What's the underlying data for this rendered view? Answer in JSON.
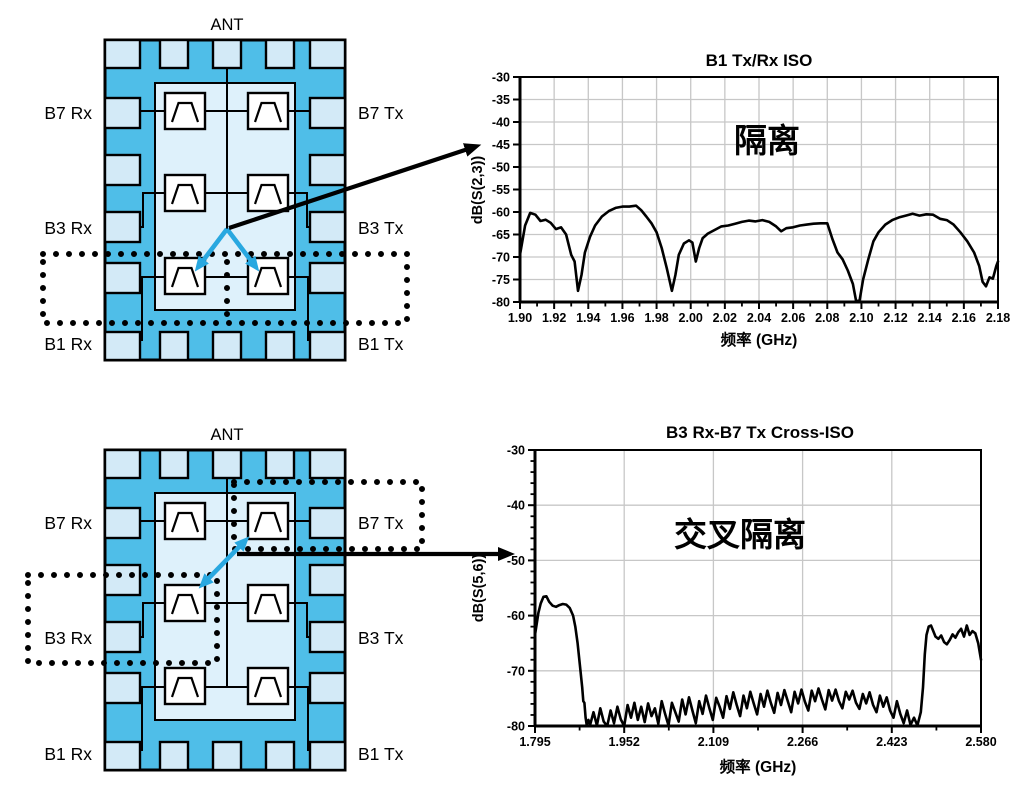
{
  "figure": {
    "background": "#ffffff"
  },
  "colors": {
    "chip_body": "#4FBEE8",
    "pad": "#D3EAF7",
    "inner_region": "#DEF1FB",
    "filter_box": "#FFFFFF",
    "accent_blue": "#29A8E0",
    "trace": "#000000",
    "grid": "#C7C7C7"
  },
  "diagram": {
    "top_chip": {
      "ant": "ANT",
      "pins_left": [
        "B7 Rx",
        "B3 Rx",
        "B1 Rx"
      ],
      "pins_right": [
        "B7 Tx",
        "B3 Tx",
        "B1 Tx"
      ]
    },
    "bottom_chip": {
      "ant": "ANT",
      "pins_left": [
        "B7 Rx",
        "B3 Rx",
        "B1 Rx"
      ],
      "pins_right": [
        "B7 Tx",
        "B3 Tx",
        "B1 Tx"
      ]
    }
  },
  "chart_data": [
    {
      "type": "line",
      "title": "B1 Tx/Rx ISO",
      "xlabel": "频率 (GHz)",
      "ylabel": "dB(S(2,3))",
      "xlim": [
        1.9,
        2.18
      ],
      "ylim": [
        -80,
        -30
      ],
      "grid": true,
      "legend": "none",
      "annotation": {
        "text": "隔离",
        "color": "#29A8E0"
      },
      "xticks": [
        1.9,
        1.92,
        1.94,
        1.96,
        1.98,
        2.0,
        2.02,
        2.04,
        2.06,
        2.08,
        2.1,
        2.12,
        2.14,
        2.16,
        2.18
      ],
      "xtick_labels": [
        "1.90",
        "1.92",
        "1.94",
        "1.96",
        "1.98",
        "2.00",
        "2.02",
        "2.04",
        "2.06",
        "2.08",
        "2.10",
        "2.12",
        "2.14",
        "2.16",
        "2.18"
      ],
      "x_minor_step": 0.01,
      "yticks": [
        -30,
        -35,
        -40,
        -45,
        -50,
        -55,
        -60,
        -65,
        -70,
        -75,
        -80
      ],
      "y_minor_step": null,
      "series": [
        {
          "name": "dB(S(2,3))",
          "color": "#000000",
          "x": [
            1.9,
            1.903,
            1.906,
            1.909,
            1.912,
            1.915,
            1.918,
            1.921,
            1.924,
            1.927,
            1.93,
            1.932,
            1.934,
            1.936,
            1.938,
            1.941,
            1.944,
            1.948,
            1.952,
            1.956,
            1.96,
            1.964,
            1.968,
            1.971,
            1.974,
            1.977,
            1.98,
            1.983,
            1.986,
            1.989,
            1.991,
            1.993,
            1.996,
            1.999,
            2.001,
            2.003,
            2.005,
            2.007,
            2.01,
            2.014,
            2.018,
            2.022,
            2.026,
            2.03,
            2.034,
            2.038,
            2.042,
            2.046,
            2.05,
            2.053,
            2.056,
            2.06,
            2.064,
            2.068,
            2.072,
            2.076,
            2.08,
            2.083,
            2.086,
            2.089,
            2.092,
            2.095,
            2.097,
            2.099,
            2.101,
            2.104,
            2.107,
            2.11,
            2.114,
            2.118,
            2.122,
            2.126,
            2.13,
            2.134,
            2.138,
            2.142,
            2.146,
            2.15,
            2.154,
            2.158,
            2.162,
            2.166,
            2.169,
            2.171,
            2.173,
            2.175,
            2.177,
            2.179,
            2.18
          ],
          "y": [
            -69.5,
            -63,
            -60.2,
            -60.6,
            -62,
            -61.7,
            -62.4,
            -63.8,
            -63.4,
            -65,
            -69.5,
            -71,
            -77.5,
            -74,
            -69,
            -65.5,
            -63,
            -61,
            -59.8,
            -59.1,
            -58.8,
            -58.8,
            -58.6,
            -59.6,
            -61,
            -62.5,
            -64.5,
            -68,
            -72.5,
            -77.5,
            -74,
            -69.5,
            -67,
            -66.3,
            -66.8,
            -71,
            -68,
            -65.8,
            -64.8,
            -64,
            -63.2,
            -63,
            -62.6,
            -62.2,
            -61.9,
            -62.1,
            -61.8,
            -62.2,
            -63.2,
            -64.3,
            -63.6,
            -63.4,
            -63,
            -62.8,
            -62.6,
            -62.5,
            -62.5,
            -66,
            -69,
            -70.5,
            -73,
            -76,
            -80,
            -79.5,
            -75,
            -70.5,
            -66.5,
            -64.5,
            -62.8,
            -61.8,
            -61.2,
            -60.8,
            -60.4,
            -60.8,
            -60.5,
            -60.6,
            -61.5,
            -61.8,
            -62.8,
            -64.5,
            -66.5,
            -69,
            -72,
            -75.5,
            -76.5,
            -74.5,
            -74.8,
            -72,
            -71
          ]
        }
      ]
    },
    {
      "type": "line",
      "title": "B3 Rx-B7 Tx Cross-ISO",
      "xlabel": "频率 (GHz)",
      "ylabel": "dB(S(5,6))",
      "xlim": [
        1.795,
        2.58
      ],
      "ylim": [
        -80,
        -30
      ],
      "grid": true,
      "legend": "none",
      "annotation": {
        "text": "交叉隔离",
        "color": "#29A8E0"
      },
      "xticks": [
        1.795,
        1.952,
        2.109,
        2.266,
        2.423,
        2.58
      ],
      "xtick_labels": [
        "1.795",
        "1.952",
        "2.109",
        "2.266",
        "2.423",
        "2.580"
      ],
      "x_minor_step": 0.0785,
      "yticks": [
        -30,
        -40,
        -50,
        -60,
        -70,
        -80
      ],
      "y_minor_step": 2,
      "series": [
        {
          "name": "dB(S(5,6))",
          "color": "#000000",
          "x": [
            1.795,
            1.798,
            1.801,
            1.805,
            1.81,
            1.815,
            1.82,
            1.826,
            1.832,
            1.838,
            1.844,
            1.85,
            1.856,
            1.862,
            1.866,
            1.87,
            1.874,
            1.878,
            1.88,
            1.882,
            1.884,
            1.886,
            1.889,
            1.892,
            1.898,
            1.904,
            1.91,
            1.916,
            1.922,
            1.928,
            1.934,
            1.94,
            1.946,
            1.952,
            1.958,
            1.964,
            1.97,
            1.976,
            1.982,
            1.988,
            1.994,
            2.0,
            2.006,
            2.012,
            2.018,
            2.024,
            2.03,
            2.036,
            2.042,
            2.048,
            2.054,
            2.06,
            2.066,
            2.072,
            2.078,
            2.084,
            2.09,
            2.096,
            2.102,
            2.108,
            2.114,
            2.12,
            2.126,
            2.132,
            2.138,
            2.144,
            2.15,
            2.156,
            2.162,
            2.168,
            2.174,
            2.18,
            2.186,
            2.192,
            2.198,
            2.204,
            2.21,
            2.216,
            2.222,
            2.228,
            2.234,
            2.24,
            2.246,
            2.252,
            2.258,
            2.264,
            2.27,
            2.276,
            2.282,
            2.288,
            2.294,
            2.3,
            2.306,
            2.312,
            2.318,
            2.324,
            2.33,
            2.336,
            2.342,
            2.348,
            2.354,
            2.36,
            2.366,
            2.372,
            2.378,
            2.384,
            2.39,
            2.396,
            2.402,
            2.408,
            2.414,
            2.42,
            2.426,
            2.432,
            2.438,
            2.444,
            2.45,
            2.456,
            2.462,
            2.468,
            2.474,
            2.478,
            2.481,
            2.484,
            2.488,
            2.492,
            2.496,
            2.5,
            2.505,
            2.51,
            2.515,
            2.52,
            2.525,
            2.53,
            2.535,
            2.54,
            2.545,
            2.55,
            2.555,
            2.56,
            2.565,
            2.57,
            2.575,
            2.58
          ],
          "y": [
            -63.5,
            -61.5,
            -59.5,
            -57.8,
            -56.6,
            -56.5,
            -57.5,
            -58.2,
            -58.4,
            -58.1,
            -57.9,
            -58.0,
            -58.6,
            -60.0,
            -62.0,
            -65.0,
            -69.0,
            -73.0,
            -75.5,
            -75.8,
            -78.5,
            -79.8,
            -78.9,
            -79.8,
            -77.5,
            -79.9,
            -76.8,
            -79.2,
            -80,
            -77.2,
            -79.5,
            -76.5,
            -78.8,
            -80,
            -76.2,
            -78.5,
            -75.8,
            -78.9,
            -76.5,
            -79.3,
            -75.9,
            -78.2,
            -76.8,
            -79.6,
            -75.5,
            -77.8,
            -79.9,
            -75.8,
            -77.5,
            -79.2,
            -75.2,
            -77.9,
            -74.8,
            -77.2,
            -79.5,
            -75.5,
            -77.8,
            -74.5,
            -76.8,
            -78.9,
            -74.9,
            -76.5,
            -78.5,
            -74.6,
            -76.9,
            -73.9,
            -76.2,
            -78.2,
            -74.5,
            -76.8,
            -73.8,
            -75.9,
            -77.9,
            -74.2,
            -76.5,
            -73.6,
            -75.8,
            -77.6,
            -74.0,
            -76.2,
            -73.5,
            -75.5,
            -77.5,
            -73.8,
            -75.9,
            -73.4,
            -75.6,
            -77.2,
            -73.6,
            -75.5,
            -73.2,
            -75.2,
            -77.0,
            -73.5,
            -75.4,
            -73.4,
            -75.5,
            -76.8,
            -73.8,
            -75.2,
            -73.6,
            -75.8,
            -76.9,
            -74.2,
            -75.9,
            -73.9,
            -76.2,
            -77.5,
            -74.5,
            -76.5,
            -74.8,
            -77.2,
            -78.5,
            -75.5,
            -77.8,
            -79.5,
            -77.2,
            -79.8,
            -78.5,
            -79.9,
            -77.5,
            -73,
            -67,
            -63.5,
            -62.0,
            -61.8,
            -62.8,
            -63.8,
            -64.2,
            -63.6,
            -64.8,
            -65.2,
            -64.4,
            -63.4,
            -64.0,
            -63.0,
            -62.4,
            -63.8,
            -61.8,
            -63.5,
            -62.8,
            -63.2,
            -65.0,
            -68.0
          ]
        }
      ]
    }
  ]
}
